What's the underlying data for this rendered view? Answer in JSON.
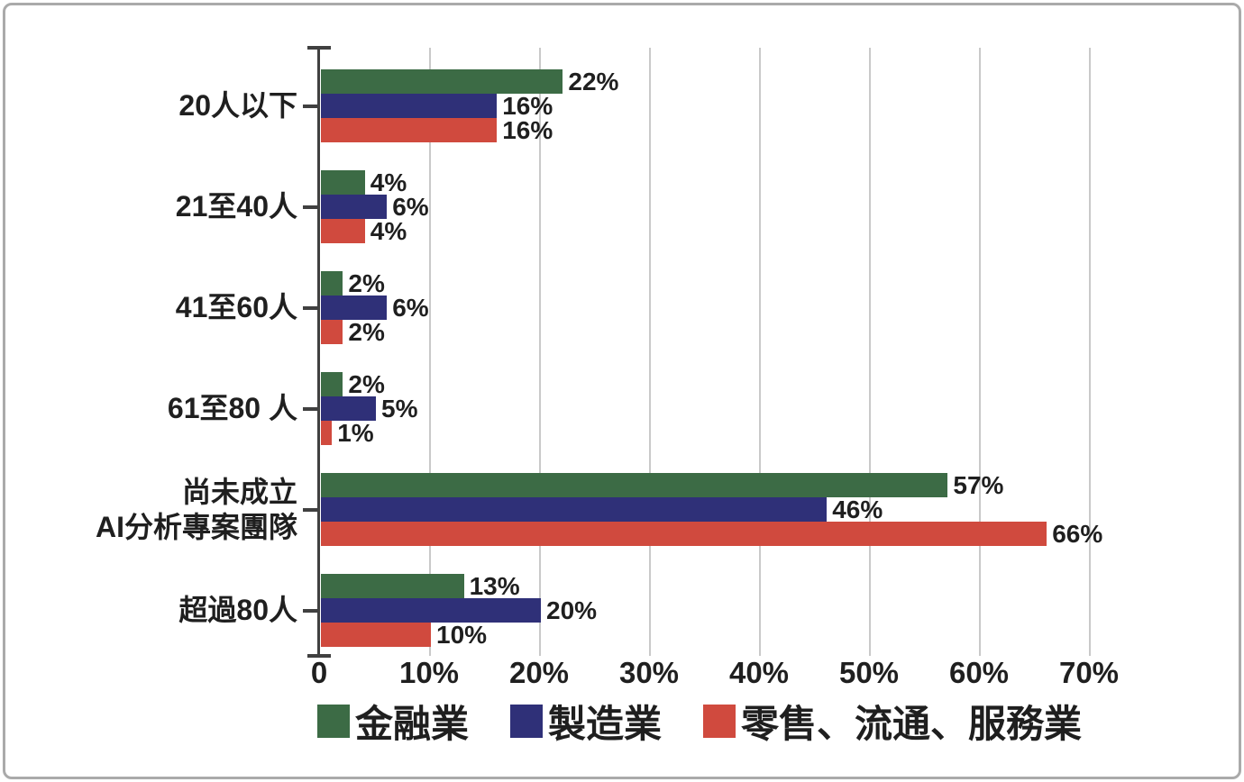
{
  "chart_data": {
    "type": "bar",
    "orientation": "horizontal",
    "title": "",
    "xlabel": "",
    "ylabel": "",
    "xlim": [
      0,
      70
    ],
    "grid": true,
    "legend_position": "bottom",
    "x_ticks": [
      "0",
      "10%",
      "20%",
      "30%",
      "40%",
      "50%",
      "60%",
      "70%"
    ],
    "categories": [
      "20人以下",
      "21至40人",
      "41至60人",
      "61至80 人",
      "尚未成立\nAI分析專案團隊",
      "超過80人"
    ],
    "series": [
      {
        "name": "金融業",
        "color": "#3c6b45",
        "values": [
          22,
          4,
          2,
          2,
          57,
          13
        ]
      },
      {
        "name": "製造業",
        "color": "#2f3078",
        "values": [
          16,
          6,
          6,
          5,
          46,
          20
        ]
      },
      {
        "name": "零售、流通、服務業",
        "color": "#d04a3e",
        "values": [
          16,
          4,
          2,
          1,
          66,
          10
        ]
      }
    ],
    "value_label_suffix": "%"
  },
  "colors": {
    "grid": "#c9c9c9",
    "axis": "#404040",
    "text": "#1f1f1f",
    "frame_border": "#aaaaaa",
    "background": "#ffffff"
  }
}
